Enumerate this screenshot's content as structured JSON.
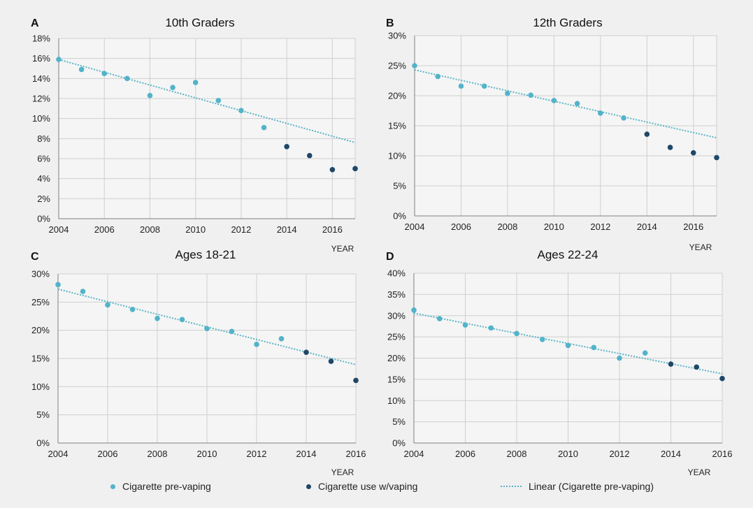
{
  "colors": {
    "pre": "#52b3c9",
    "post": "#1f4768",
    "trend": "#5ab4c6",
    "grid": "#cfcfcf",
    "axis": "#333333",
    "text": "#222222",
    "background": "#f0f0f0"
  },
  "legend": {
    "pre_label": "Cigarette pre-vaping",
    "post_label": "Cigarette use w/vaping",
    "trend_label": "Linear (Cigarette pre-vaping)"
  },
  "chart_data": [
    {
      "type": "scatter",
      "panel_letter": "A",
      "title": "10th Graders",
      "xlabel": "YEAR",
      "x_ticks": [
        "2004",
        "2006",
        "2008",
        "2010",
        "2012",
        "2014",
        "2016"
      ],
      "y_ticks": [
        "0%",
        "2%",
        "4%",
        "6%",
        "8%",
        "10%",
        "12%",
        "14%",
        "16%",
        "18%"
      ],
      "xlim": [
        2004,
        2017
      ],
      "ylim": [
        0,
        18
      ],
      "grid": true,
      "series": [
        {
          "name": "Cigarette pre-vaping",
          "x": [
            2004,
            2005,
            2006,
            2007,
            2008,
            2009,
            2010,
            2011,
            2012,
            2013
          ],
          "y": [
            15.9,
            14.9,
            14.5,
            14.0,
            12.3,
            13.1,
            13.6,
            11.8,
            10.8,
            9.1
          ]
        },
        {
          "name": "Cigarette use w/vaping",
          "x": [
            2014,
            2015,
            2016,
            2017
          ],
          "y": [
            7.2,
            6.3,
            4.9,
            5.0
          ]
        }
      ],
      "trendline": {
        "name": "Linear (Cigarette pre-vaping)",
        "x": [
          2004,
          2017
        ],
        "y": [
          15.9,
          7.6
        ]
      }
    },
    {
      "type": "scatter",
      "panel_letter": "B",
      "title": "12th Graders",
      "xlabel": "YEAR",
      "x_ticks": [
        "2004",
        "2006",
        "2008",
        "2010",
        "2012",
        "2014",
        "2016"
      ],
      "y_ticks": [
        "0%",
        "5%",
        "10%",
        "15%",
        "20%",
        "25%",
        "30%"
      ],
      "xlim": [
        2004,
        2017
      ],
      "ylim": [
        0,
        30
      ],
      "grid": true,
      "series": [
        {
          "name": "Cigarette pre-vaping",
          "x": [
            2004,
            2005,
            2006,
            2007,
            2008,
            2009,
            2010,
            2011,
            2012,
            2013
          ],
          "y": [
            25.0,
            23.2,
            21.6,
            21.6,
            20.4,
            20.1,
            19.2,
            18.7,
            17.1,
            16.3
          ]
        },
        {
          "name": "Cigarette use w/vaping",
          "x": [
            2014,
            2015,
            2016,
            2017
          ],
          "y": [
            13.6,
            11.4,
            10.5,
            9.7
          ]
        }
      ],
      "trendline": {
        "name": "Linear (Cigarette pre-vaping)",
        "x": [
          2004,
          2017
        ],
        "y": [
          24.3,
          13.0
        ]
      }
    },
    {
      "type": "scatter",
      "panel_letter": "C",
      "title": "Ages 18-21",
      "xlabel": "YEAR",
      "x_ticks": [
        "2004",
        "2006",
        "2008",
        "2010",
        "2012",
        "2014",
        "2016"
      ],
      "y_ticks": [
        "0%",
        "5%",
        "10%",
        "15%",
        "20%",
        "25%",
        "30%"
      ],
      "xlim": [
        2004,
        2016
      ],
      "ylim": [
        0,
        30
      ],
      "grid": true,
      "series": [
        {
          "name": "Cigarette pre-vaping",
          "x": [
            2004,
            2005,
            2006,
            2007,
            2008,
            2009,
            2010,
            2011,
            2012,
            2013
          ],
          "y": [
            28.1,
            26.9,
            24.5,
            23.7,
            22.1,
            21.9,
            20.3,
            19.8,
            17.5,
            18.5
          ]
        },
        {
          "name": "Cigarette use w/vaping",
          "x": [
            2014,
            2015,
            2016
          ],
          "y": [
            16.1,
            14.5,
            11.1
          ]
        }
      ],
      "trendline": {
        "name": "Linear (Cigarette pre-vaping)",
        "x": [
          2004,
          2016
        ],
        "y": [
          27.3,
          13.9
        ]
      }
    },
    {
      "type": "scatter",
      "panel_letter": "D",
      "title": "Ages 22-24",
      "xlabel": "YEAR",
      "x_ticks": [
        "2004",
        "2006",
        "2008",
        "2010",
        "2012",
        "2014",
        "2016"
      ],
      "y_ticks": [
        "0%",
        "5%",
        "10%",
        "15%",
        "20%",
        "25%",
        "30%",
        "35%",
        "40%"
      ],
      "xlim": [
        2004,
        2016
      ],
      "ylim": [
        0,
        40
      ],
      "grid": true,
      "series": [
        {
          "name": "Cigarette pre-vaping",
          "x": [
            2004,
            2005,
            2006,
            2007,
            2008,
            2009,
            2010,
            2011,
            2012,
            2013
          ],
          "y": [
            31.3,
            29.3,
            27.8,
            27.1,
            25.8,
            24.4,
            23.0,
            22.5,
            20.0,
            21.2
          ]
        },
        {
          "name": "Cigarette use w/vaping",
          "x": [
            2014,
            2015,
            2016
          ],
          "y": [
            18.6,
            17.9,
            15.2
          ]
        }
      ],
      "trendline": {
        "name": "Linear (Cigarette pre-vaping)",
        "x": [
          2004,
          2016
        ],
        "y": [
          30.6,
          16.3
        ]
      }
    }
  ]
}
